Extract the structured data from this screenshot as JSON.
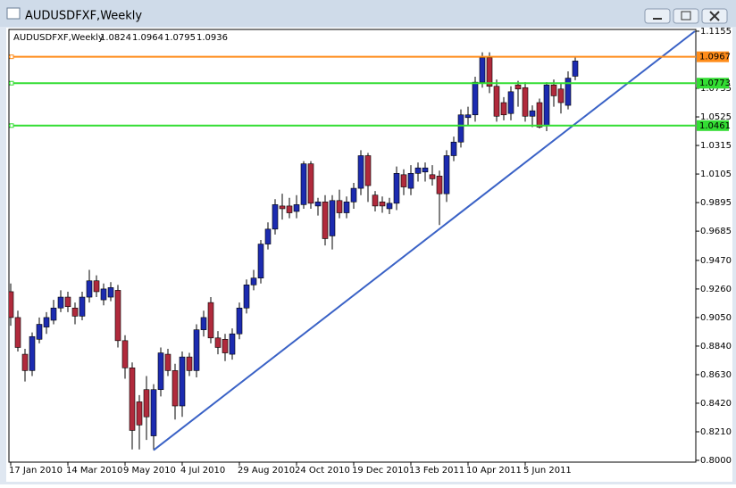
{
  "chart_data": {
    "type": "candlestick",
    "title": "AUDUSDFXF,Weekly",
    "categories": [
      "17 Jan 2010",
      null,
      null,
      null,
      null,
      null,
      null,
      null,
      "14 Mar 2010",
      null,
      null,
      null,
      null,
      null,
      null,
      null,
      "9 May 2010",
      null,
      null,
      null,
      null,
      null,
      null,
      null,
      "4 Jul 2010",
      null,
      null,
      null,
      null,
      null,
      null,
      null,
      "29 Aug 2010",
      null,
      null,
      null,
      null,
      null,
      null,
      null,
      "24 Oct 2010",
      null,
      null,
      null,
      null,
      null,
      null,
      null,
      "19 Dec 2010",
      null,
      null,
      null,
      null,
      null,
      null,
      null,
      "13 Feb 2011",
      null,
      null,
      null,
      null,
      null,
      null,
      null,
      "10 Apr 2011",
      null,
      null,
      null,
      null,
      null,
      null,
      null,
      "5 Jun 2011",
      null,
      null,
      null,
      null,
      null,
      null,
      null
    ],
    "open": [
      0.924,
      0.905,
      0.878,
      0.866,
      0.889,
      0.898,
      0.903,
      0.912,
      0.92,
      0.912,
      0.906,
      0.92,
      0.932,
      0.918,
      0.92,
      0.925,
      0.888,
      0.868,
      0.843,
      0.852,
      0.818,
      0.852,
      0.878,
      0.866,
      0.84,
      0.876,
      0.866,
      0.896,
      0.916,
      0.89,
      0.889,
      0.878,
      0.893,
      0.912,
      0.929,
      0.934,
      0.959,
      0.97,
      0.987,
      0.987,
      0.983,
      0.988,
      1.018,
      0.987,
      0.99,
      0.965,
      0.991,
      0.982,
      0.99,
      1.0,
      1.024,
      0.995,
      0.99,
      0.985,
      0.989,
      1.01,
      1.0,
      1.011,
      1.012,
      1.01,
      1.009,
      0.996,
      1.024,
      1.034,
      1.052,
      1.054,
      1.078,
      1.096,
      1.075,
      1.063,
      1.055,
      1.076,
      1.074,
      1.053,
      1.063,
      1.046,
      1.076,
      1.073,
      1.061,
      1.0824
    ],
    "high": [
      0.93,
      0.91,
      0.882,
      0.894,
      0.905,
      0.909,
      0.918,
      0.925,
      0.924,
      0.916,
      0.924,
      0.94,
      0.936,
      0.93,
      0.931,
      0.929,
      0.892,
      0.872,
      0.848,
      0.862,
      0.856,
      0.883,
      0.882,
      0.871,
      0.88,
      0.879,
      0.9,
      0.91,
      0.92,
      0.895,
      0.893,
      0.897,
      0.916,
      0.933,
      0.94,
      0.962,
      0.975,
      0.992,
      0.996,
      0.993,
      0.995,
      1.02,
      1.02,
      0.993,
      0.995,
      0.995,
      0.999,
      0.994,
      1.004,
      1.028,
      1.026,
      0.998,
      0.994,
      0.993,
      1.016,
      1.014,
      1.017,
      1.019,
      1.019,
      1.017,
      1.013,
      1.028,
      1.038,
      1.058,
      1.06,
      1.082,
      1.1,
      1.1,
      1.08,
      1.067,
      1.075,
      1.079,
      1.078,
      1.061,
      1.066,
      1.078,
      1.08,
      1.077,
      1.086,
      1.0964
    ],
    "low": [
      0.899,
      0.88,
      0.858,
      0.862,
      0.886,
      0.893,
      0.9,
      0.909,
      0.909,
      0.9,
      0.903,
      0.916,
      0.92,
      0.914,
      0.917,
      0.883,
      0.86,
      0.808,
      0.808,
      0.815,
      0.8075,
      0.847,
      0.862,
      0.83,
      0.832,
      0.862,
      0.861,
      0.891,
      0.886,
      0.878,
      0.873,
      0.874,
      0.889,
      0.908,
      0.925,
      0.93,
      0.955,
      0.966,
      0.977,
      0.978,
      0.978,
      0.985,
      0.985,
      0.98,
      0.958,
      0.955,
      0.978,
      0.978,
      0.985,
      0.995,
      0.99,
      0.983,
      0.982,
      0.981,
      0.984,
      0.995,
      0.995,
      1.005,
      1.005,
      1.002,
      0.973,
      0.99,
      1.02,
      1.03,
      1.046,
      1.049,
      1.074,
      1.07,
      1.049,
      1.05,
      1.05,
      1.06,
      1.049,
      1.045,
      1.044,
      1.042,
      1.06,
      1.055,
      1.058,
      1.0795
    ],
    "close": [
      0.905,
      0.883,
      0.866,
      0.891,
      0.9,
      0.905,
      0.912,
      0.92,
      0.913,
      0.906,
      0.92,
      0.932,
      0.924,
      0.926,
      0.927,
      0.888,
      0.868,
      0.822,
      0.826,
      0.832,
      0.852,
      0.879,
      0.866,
      0.84,
      0.876,
      0.866,
      0.896,
      0.905,
      0.89,
      0.883,
      0.879,
      0.893,
      0.912,
      0.929,
      0.934,
      0.959,
      0.97,
      0.988,
      0.985,
      0.982,
      0.988,
      1.018,
      0.989,
      0.99,
      0.963,
      0.991,
      0.982,
      0.99,
      1.0,
      1.024,
      1.002,
      0.987,
      0.987,
      0.989,
      1.011,
      1.001,
      1.011,
      1.015,
      1.015,
      1.007,
      0.996,
      1.024,
      1.034,
      1.054,
      1.054,
      1.078,
      1.096,
      1.075,
      1.053,
      1.054,
      1.071,
      1.073,
      1.053,
      1.057,
      1.045,
      1.076,
      1.068,
      1.063,
      1.081,
      1.0936
    ],
    "up_color": "#1c2bb0",
    "down_color": "#b02a3c",
    "ylim": [
      0.8,
      1.1168
    ],
    "yticks": [
      1.1155,
      1.0735,
      1.0525,
      1.0315,
      1.0105,
      0.9895,
      0.9685,
      {
        "value": 0.947,
        "label": "0.9470"
      },
      {
        "value": 0.926,
        "label": "0.9260"
      },
      {
        "value": 0.905,
        "label": "0.9050"
      },
      {
        "value": 0.884,
        "label": "0.8840"
      },
      {
        "value": 0.863,
        "label": "0.8630"
      },
      {
        "value": 0.842,
        "label": "0.8420"
      },
      {
        "value": 0.821,
        "label": "0.8210"
      },
      {
        "value": 0.8,
        "label": "0.8000"
      }
    ],
    "hlines": [
      {
        "value": 1.0967,
        "color": "#ff8c1a"
      },
      {
        "value": 1.0773,
        "color": "#33dd33"
      },
      {
        "value": 1.0461,
        "color": "#33dd33"
      }
    ],
    "trendline": {
      "x": [
        20,
        95.75
      ],
      "y": [
        0.8075,
        1.1155
      ],
      "color": "#3a62c6"
    }
  }
}
